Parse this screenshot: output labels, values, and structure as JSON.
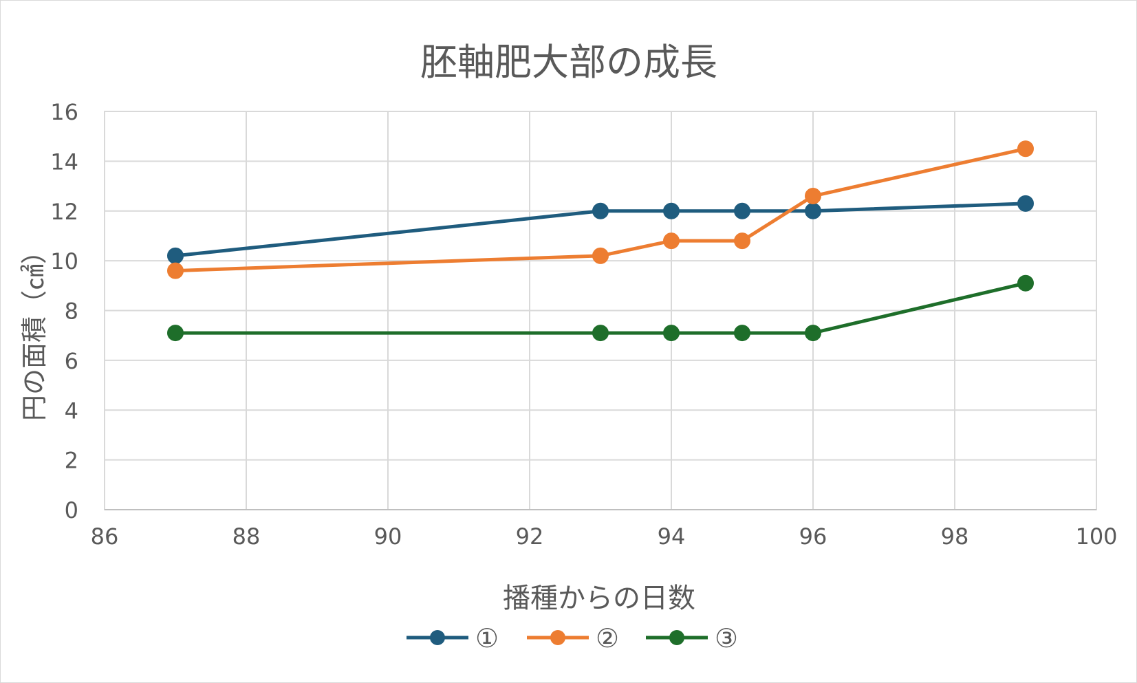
{
  "chart_data": {
    "type": "line",
    "title": "胚軸肥大部の成長",
    "xlabel": "播種からの日数",
    "ylabel": "円の面積（㎠）",
    "xlim": [
      86,
      100
    ],
    "ylim": [
      0,
      16
    ],
    "x_ticks": [
      86,
      88,
      90,
      92,
      94,
      96,
      98,
      100
    ],
    "y_ticks": [
      0,
      2,
      4,
      6,
      8,
      10,
      12,
      14,
      16
    ],
    "grid": true,
    "legend_position": "bottom",
    "x": [
      87,
      93,
      94,
      95,
      96,
      99
    ],
    "series": [
      {
        "name": "①",
        "color": "#1f5c7e",
        "values": [
          10.2,
          12.0,
          12.0,
          12.0,
          12.0,
          12.3
        ]
      },
      {
        "name": "②",
        "color": "#ed7d31",
        "values": [
          9.6,
          10.2,
          10.8,
          10.8,
          12.6,
          14.5
        ]
      },
      {
        "name": "③",
        "color": "#1e6e2a",
        "values": [
          7.1,
          7.1,
          7.1,
          7.1,
          7.1,
          9.1
        ]
      }
    ]
  }
}
